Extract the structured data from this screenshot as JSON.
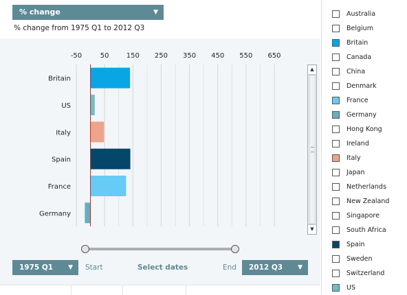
{
  "metric_select": {
    "label": "% change",
    "icon": "triangle-down-icon"
  },
  "subtitle": "% change from 1975 Q1 to 2012 Q3",
  "chart_data": {
    "type": "bar",
    "orientation": "horizontal",
    "categories": [
      "Britain",
      "US",
      "Italy",
      "Spain",
      "France",
      "Germany"
    ],
    "values": [
      140,
      15,
      48,
      141,
      126,
      -20
    ],
    "colors": [
      "#0aa5e4",
      "#6bbfc5",
      "#eda48a",
      "#04476b",
      "#66ccf5",
      "#69aebb"
    ],
    "x_ticks": [
      -50,
      50,
      150,
      250,
      350,
      450,
      550,
      650
    ],
    "x_tick_labels": [
      "-50",
      "50",
      "150",
      "250",
      "350",
      "450",
      "550",
      "650"
    ],
    "xlim": [
      -50,
      650
    ],
    "zero_line_color": "#cc1f1f",
    "grid": true,
    "legend_position": "right"
  },
  "date_range": {
    "start": "1975 Q1",
    "end": "2012 Q3",
    "start_label": "Start",
    "end_label": "End",
    "select_label": "Select dates",
    "slider_start": 0.0,
    "slider_end": 1.0
  },
  "legend": {
    "items": [
      {
        "label": "Australia",
        "color": "#ffffff"
      },
      {
        "label": "Belgium",
        "color": "#ffffff"
      },
      {
        "label": "Britain",
        "color": "#0aa5e4"
      },
      {
        "label": "Canada",
        "color": "#ffffff"
      },
      {
        "label": "China",
        "color": "#ffffff"
      },
      {
        "label": "Denmark",
        "color": "#ffffff"
      },
      {
        "label": "France",
        "color": "#66ccf5"
      },
      {
        "label": "Germany",
        "color": "#69aebb"
      },
      {
        "label": "Hong Kong",
        "color": "#ffffff"
      },
      {
        "label": "Ireland",
        "color": "#ffffff"
      },
      {
        "label": "Italy",
        "color": "#eda48a"
      },
      {
        "label": "Japan",
        "color": "#ffffff"
      },
      {
        "label": "Netherlands",
        "color": "#ffffff"
      },
      {
        "label": "New Zealand",
        "color": "#ffffff"
      },
      {
        "label": "Singapore",
        "color": "#ffffff"
      },
      {
        "label": "South Africa",
        "color": "#ffffff"
      },
      {
        "label": "Spain",
        "color": "#04476b"
      },
      {
        "label": "Sweden",
        "color": "#ffffff"
      },
      {
        "label": "Switzerland",
        "color": "#ffffff"
      },
      {
        "label": "US",
        "color": "#6bbfc5"
      }
    ]
  }
}
